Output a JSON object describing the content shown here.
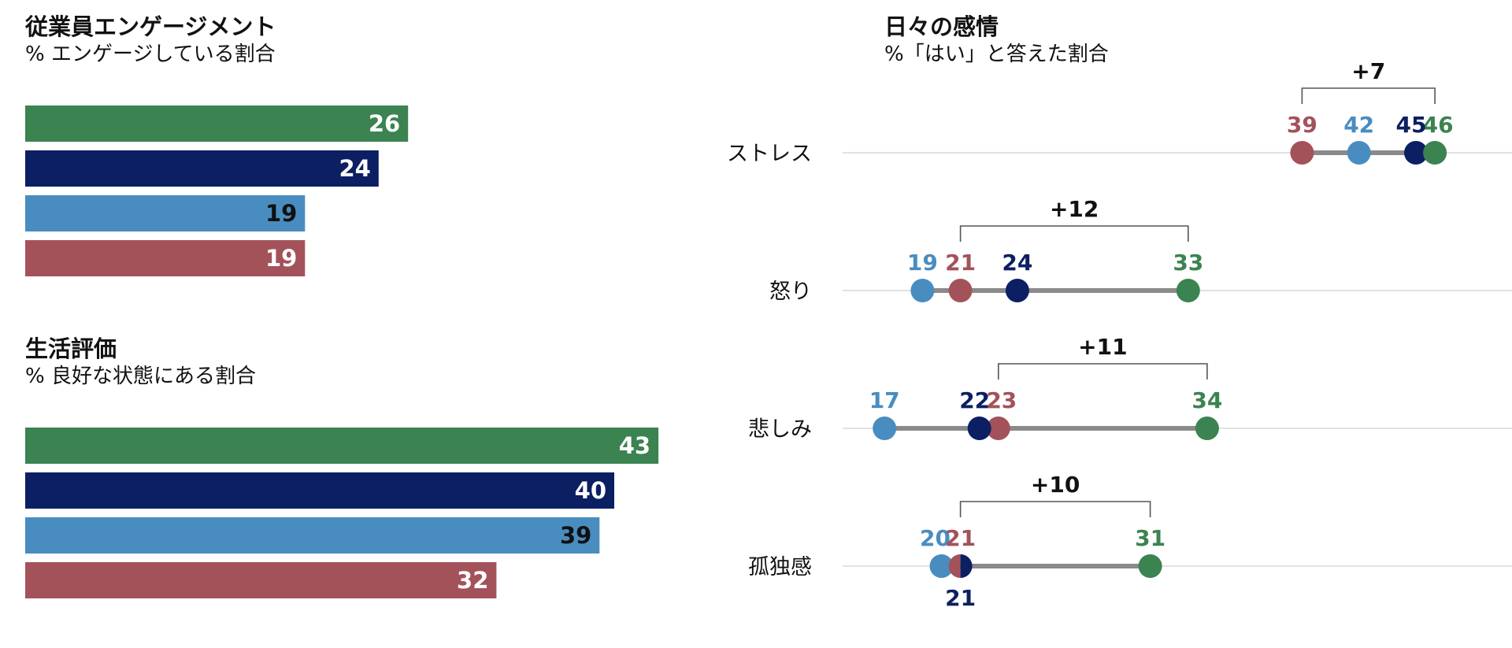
{
  "colors": {
    "series_1": "#3b8350",
    "series_2": "#0c1f63",
    "series_3": "#498dc0",
    "series_4": "#a4525a",
    "range_line": "#8a8a8a",
    "gridline": "#e2e2e2",
    "bracket": "#555555"
  },
  "chart_data": [
    {
      "type": "bar",
      "title": "従業員エンゲージメント",
      "subtitle": "% エンゲージしている割合",
      "orientation": "horizontal",
      "xlim": [
        0,
        50
      ],
      "values": [
        26,
        24,
        19,
        19
      ],
      "value_labels": [
        "26",
        "24",
        "19",
        "19"
      ]
    },
    {
      "type": "bar",
      "title": "生活評価",
      "subtitle": "% 良好な状態にある割合",
      "orientation": "horizontal",
      "xlim": [
        0,
        50
      ],
      "values": [
        43,
        40,
        39,
        32
      ],
      "value_labels": [
        "43",
        "40",
        "39",
        "32"
      ]
    },
    {
      "type": "scatter",
      "title": "日々の感情",
      "subtitle": "%「はい」と答えた割合",
      "xlim": [
        15,
        50
      ],
      "rows": [
        {
          "label": "ストレス",
          "values": [
            46,
            45,
            42,
            39
          ],
          "value_labels": [
            "46",
            "45",
            "42",
            "39"
          ],
          "diff_label": "+7"
        },
        {
          "label": "怒り",
          "values": [
            33,
            24,
            19,
            21
          ],
          "value_labels": [
            "33",
            "24",
            "19",
            "21"
          ],
          "diff_label": "+12"
        },
        {
          "label": "悲しみ",
          "values": [
            34,
            22,
            17,
            23
          ],
          "value_labels": [
            "34",
            "22",
            "17",
            "23"
          ],
          "diff_label": "+11"
        },
        {
          "label": "孤独感",
          "values": [
            31,
            21,
            20,
            21
          ],
          "value_labels": [
            "31",
            "21",
            "20",
            "21"
          ],
          "diff_label": "+10"
        }
      ]
    }
  ]
}
